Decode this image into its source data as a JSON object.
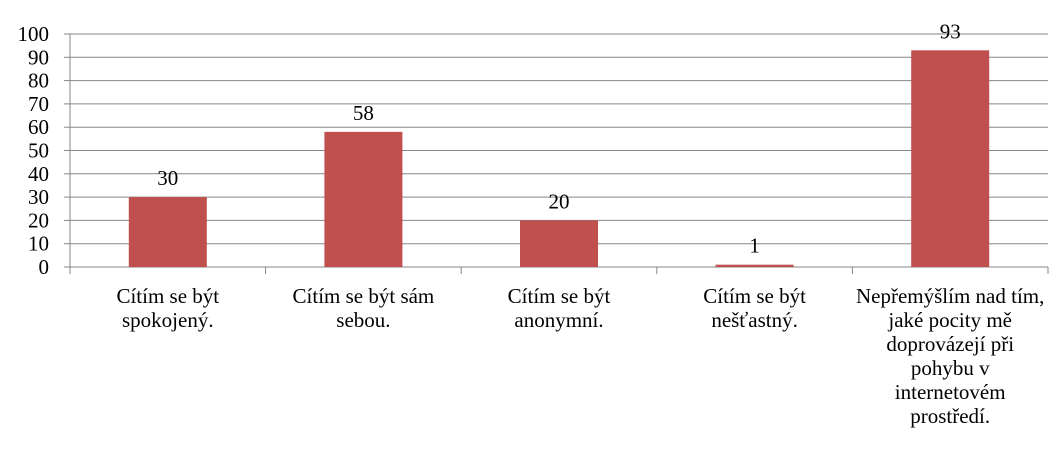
{
  "chart_data": {
    "type": "bar",
    "categories": [
      "Cítím se být spokojený.",
      "Cítím se být sám sebou.",
      "Cítím se být anonymní.",
      "Cítím se být nešťastný.",
      "Nepřemýšlím nad tím, jaké pocity mě doprovázejí při pohybu v internetovém prostředí."
    ],
    "values": [
      30,
      58,
      20,
      1,
      93
    ],
    "color": "#c0504d",
    "ylim": [
      0,
      100
    ],
    "yticks": [
      0,
      10,
      20,
      30,
      40,
      50,
      60,
      70,
      80,
      90,
      100
    ],
    "grid": true
  }
}
